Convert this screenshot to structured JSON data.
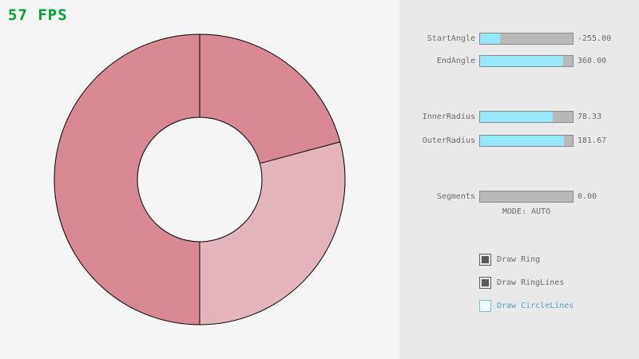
{
  "fps": {
    "label": "57 FPS",
    "color": "#00a32e"
  },
  "ring": {
    "dark_color": "#d98994",
    "light_color": "#e4b5bc",
    "line_color": "#000000"
  },
  "panel": {
    "sliders": [
      {
        "label": "StartAngle",
        "value": "-255.00",
        "fill_pct": 21.7
      },
      {
        "label": "EndAngle",
        "value": "360.00",
        "fill_pct": 90
      },
      {
        "label": "InnerRadius",
        "value": "78.33",
        "fill_pct": 78.3
      },
      {
        "label": "OuterRadius",
        "value": "181.67",
        "fill_pct": 90.8
      },
      {
        "label": "Segments",
        "value": "0.00",
        "fill_pct": 0
      }
    ],
    "mode_text": "MODE: AUTO",
    "checkboxes": [
      {
        "label": "Draw Ring",
        "checked": true
      },
      {
        "label": "Draw RingLines",
        "checked": true
      },
      {
        "label": "Draw CircleLines",
        "checked": false
      }
    ]
  }
}
